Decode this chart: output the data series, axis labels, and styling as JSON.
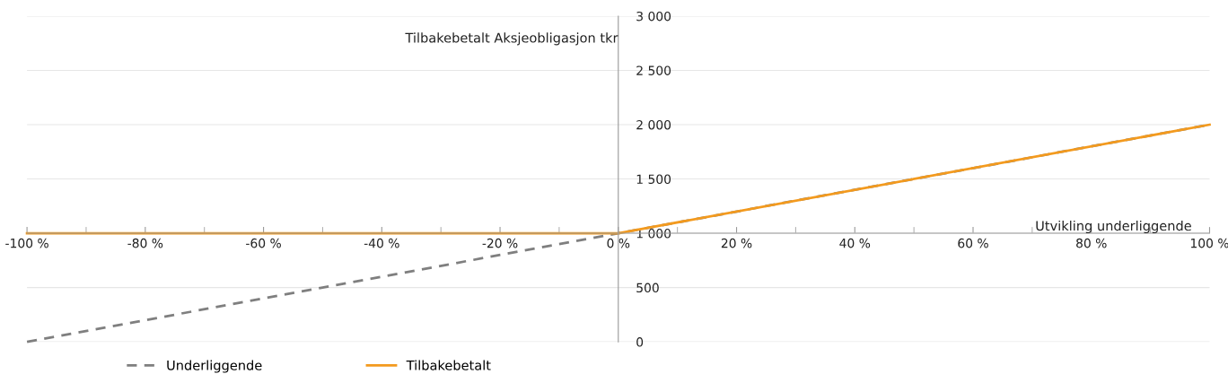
{
  "chart_data": {
    "type": "line",
    "x": [
      -100,
      0,
      100
    ],
    "series": [
      {
        "name": "Underliggende",
        "color": "#7f7f7f",
        "line_style": "dashed",
        "values": [
          0,
          1000,
          2000
        ]
      },
      {
        "name": "Tilbakebetalt",
        "color": "#f39a1e",
        "line_style": "solid",
        "values": [
          1000,
          1000,
          2000
        ]
      }
    ],
    "xlabel": "Utvikling underliggende",
    "ylabel": "Tilbakebetalt Aksjeobligasjon tkr",
    "xlim": [
      -100,
      100
    ],
    "ylim": [
      0,
      3000
    ],
    "xticks": [
      {
        "value": -100,
        "label": "-100 %"
      },
      {
        "value": -80,
        "label": "-80 %"
      },
      {
        "value": -60,
        "label": "-60 %"
      },
      {
        "value": -40,
        "label": "-40 %"
      },
      {
        "value": -20,
        "label": "-20 %"
      },
      {
        "value": 0,
        "label": "0 %"
      },
      {
        "value": 20,
        "label": "20 %"
      },
      {
        "value": 40,
        "label": "40 %"
      },
      {
        "value": 60,
        "label": "60 %"
      },
      {
        "value": 80,
        "label": "80 %"
      },
      {
        "value": 100,
        "label": "100 %"
      }
    ],
    "yticks": [
      {
        "value": 0,
        "label": "0"
      },
      {
        "value": 500,
        "label": "500"
      },
      {
        "value": 1000,
        "label": "1 000"
      },
      {
        "value": 1500,
        "label": "1 500"
      },
      {
        "value": 2000,
        "label": "2 000"
      },
      {
        "value": 2500,
        "label": "2 500"
      },
      {
        "value": 3000,
        "label": "3 000"
      }
    ],
    "grid": "y",
    "legend": "bottom",
    "marker": "none"
  }
}
